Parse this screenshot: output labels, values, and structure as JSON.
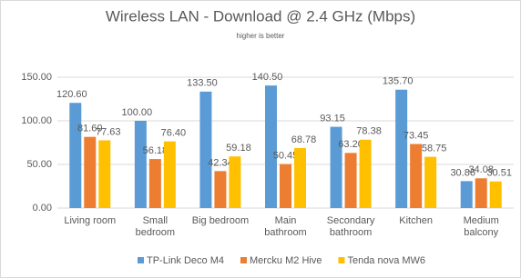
{
  "chart_data": {
    "type": "bar",
    "title": "Wireless LAN - Download @ 2.4 GHz (Mbps)",
    "subtitle": "higher is better",
    "categories": [
      "Living room",
      "Small bedroom",
      "Big bedroom",
      "Main bathroom",
      "Secondary bathroom",
      "Kitchen",
      "Medium balcony"
    ],
    "series": [
      {
        "name": "TP-Link Deco M4",
        "color": "#5b9bd5",
        "values": [
          120.6,
          100,
          133.5,
          140.5,
          93.15,
          135.7,
          30.86
        ],
        "value_labels": [
          "120.60",
          "100.00",
          "133.50",
          "140.50",
          "93.15",
          "135.70",
          "30.86"
        ]
      },
      {
        "name": "Mercku M2 Hive",
        "color": "#ed7d31",
        "values": [
          81.6,
          56.18,
          42.34,
          50.45,
          63.2,
          73.45,
          34.08
        ],
        "value_labels": [
          "81.60",
          "56.18",
          "42.34",
          "50.45",
          "63.20",
          "73.45",
          "34.08"
        ]
      },
      {
        "name": "Tenda nova MW6",
        "color": "#ffc000",
        "values": [
          77.63,
          76.4,
          59.18,
          68.78,
          78.38,
          58.75,
          30.51
        ],
        "value_labels": [
          "77.63",
          "76.40",
          "59.18",
          "68.78",
          "78.38",
          "58.75",
          "30.51"
        ]
      }
    ],
    "ylim": [
      0,
      150
    ],
    "yticks": [
      {
        "value": 0,
        "label": "0.00"
      },
      {
        "value": 50,
        "label": "50.00"
      },
      {
        "value": 100,
        "label": "100.00"
      },
      {
        "value": 150,
        "label": "150.00"
      }
    ],
    "grid": true,
    "legend": "bottom"
  }
}
